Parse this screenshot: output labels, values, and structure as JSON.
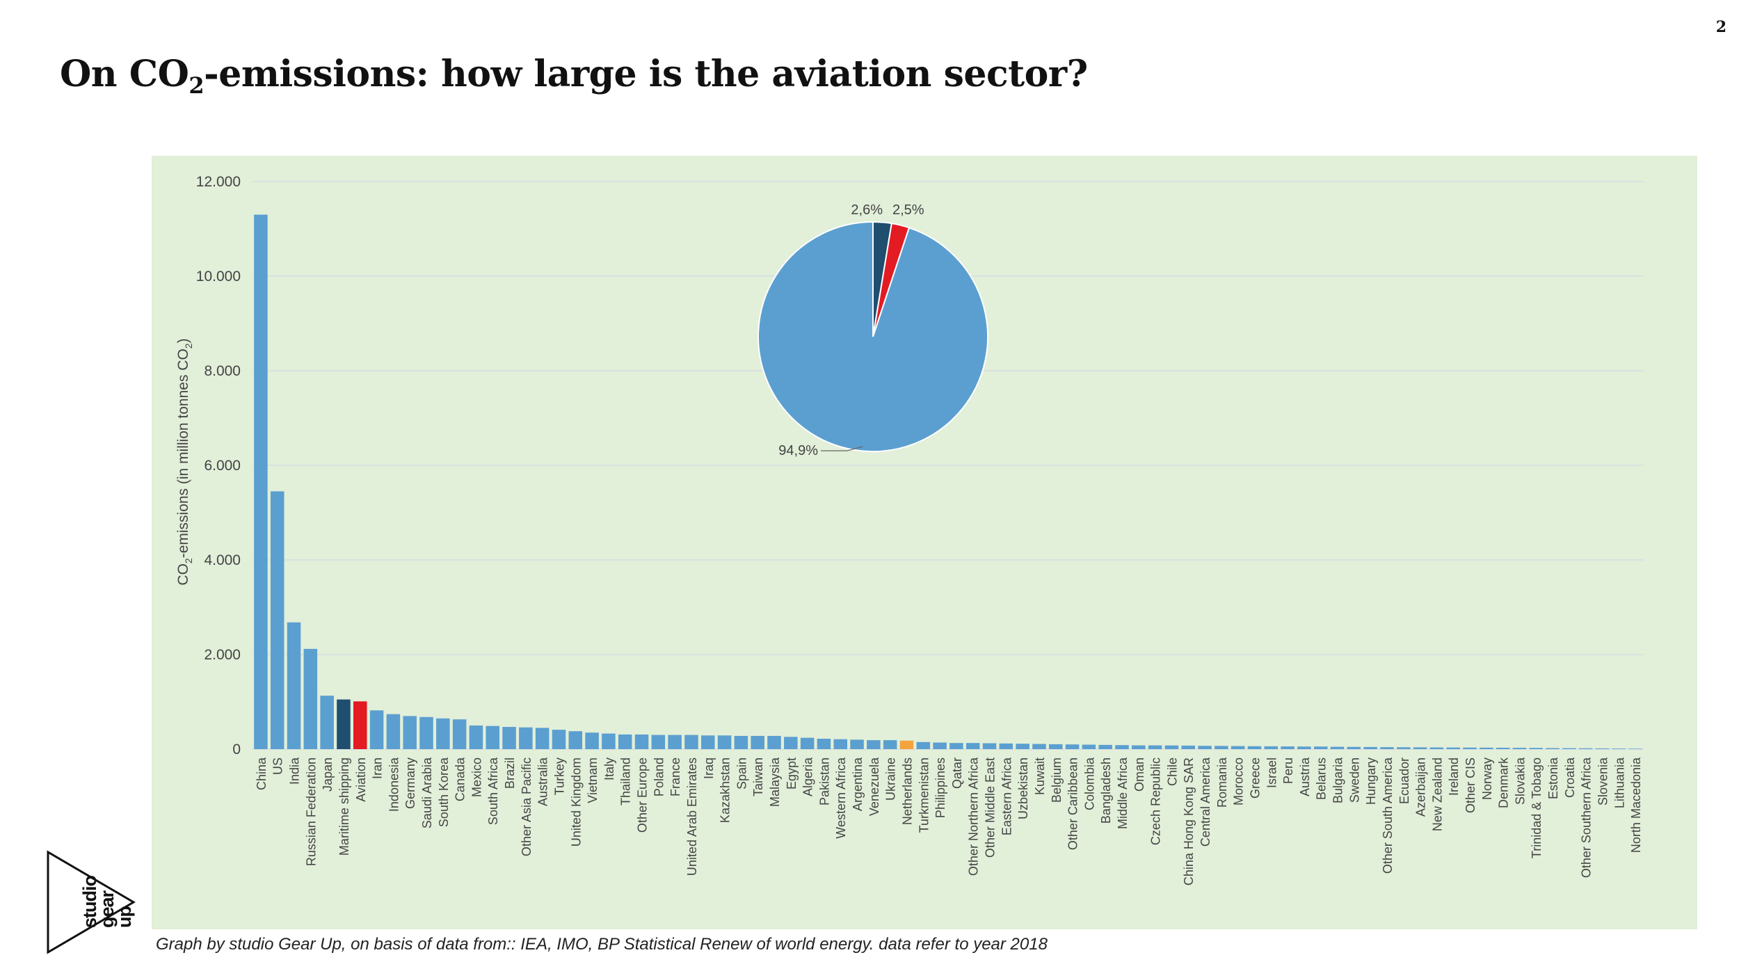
{
  "slide_number": "2",
  "title": {
    "prefix": "On CO",
    "subscript": "2",
    "suffix": "-emissions: how large is the aviation sector?"
  },
  "caption": "Graph by studio Gear Up, on basis of data from:: IEA, IMO, BP Statistical Renew of world energy. data refer to year 2018",
  "logo": {
    "lines": [
      "studio",
      "gear",
      "up"
    ]
  },
  "colors": {
    "panel_bg": "#e2efd9",
    "bar_default": "#5b9fd0",
    "maritime_shipping": "#1f4e6e",
    "aviation": "#e31b23",
    "netherlands": "#f5a33c",
    "grid": "#d6dde3",
    "axis_text": "#444444"
  },
  "chart_data": [
    {
      "type": "bar",
      "ylabel_prefix": "CO",
      "ylabel_sub": "2",
      "ylabel_middle": "-emissions (in million tonnes CO",
      "ylabel_end": ")",
      "ylim": [
        0,
        12000
      ],
      "yticks": [
        "0",
        "2.000",
        "4.000",
        "6.000",
        "8.000",
        "10.000",
        "12.000"
      ],
      "ytick_values": [
        0,
        2000,
        4000,
        6000,
        8000,
        10000,
        12000
      ],
      "grid": true,
      "categories": [
        "China",
        "US",
        "India",
        "Russian Federation",
        "Japan",
        "Maritime shipping",
        "Aviation",
        "Iran",
        "Indonesia",
        "Germany",
        "Saudi Arabia",
        "South Korea",
        "Canada",
        "Mexico",
        "South Africa",
        "Brazil",
        "Other Asia Pacific",
        "Australia",
        "Turkey",
        "United Kingdom",
        "Vietnam",
        "Italy",
        "Thailand",
        "Other Europe",
        "Poland",
        "France",
        "United Arab Emirates",
        "Iraq",
        "Kazakhstan",
        "Spain",
        "Taiwan",
        "Malaysia",
        "Egypt",
        "Algeria",
        "Pakistan",
        "Western Africa",
        "Argentina",
        "Venezuela",
        "Ukraine",
        "Netherlands",
        "Turkmenistan",
        "Philippines",
        "Qatar",
        "Other Northern Africa",
        "Other Middle East",
        "Eastern Africa",
        "Uzbekistan",
        "Kuwait",
        "Belgium",
        "Other Caribbean",
        "Colombia",
        "Bangladesh",
        "Middle Africa",
        "Oman",
        "Czech Republic",
        "Chile",
        "China Hong Kong SAR",
        "Central America",
        "Romania",
        "Morocco",
        "Greece",
        "Israel",
        "Peru",
        "Austria",
        "Belarus",
        "Bulgaria",
        "Sweden",
        "Hungary",
        "Other South America",
        "Ecuador",
        "Azerbaijan",
        "New Zealand",
        "Ireland",
        "Other CIS",
        "Norway",
        "Denmark",
        "Slovakia",
        "Trinidad & Tobago",
        "Estonia",
        "Croatia",
        "Other Southern Africa",
        "Slovenia",
        "Lithuania",
        "North Macedonia"
      ],
      "values": [
        11300,
        5450,
        2680,
        2120,
        1130,
        1050,
        1010,
        820,
        740,
        700,
        680,
        650,
        630,
        500,
        490,
        470,
        460,
        450,
        410,
        380,
        350,
        330,
        310,
        310,
        300,
        300,
        300,
        290,
        290,
        280,
        280,
        280,
        260,
        240,
        220,
        210,
        200,
        190,
        190,
        180,
        150,
        140,
        130,
        130,
        125,
        120,
        115,
        110,
        105,
        100,
        95,
        90,
        85,
        80,
        80,
        78,
        75,
        70,
        68,
        65,
        62,
        60,
        58,
        55,
        55,
        50,
        48,
        45,
        42,
        40,
        38,
        36,
        35,
        33,
        32,
        30,
        28,
        26,
        22,
        20,
        18,
        15,
        12,
        10
      ],
      "highlights": {
        "Maritime shipping": "#1f4e6e",
        "Aviation": "#e31b23",
        "Netherlands": "#f5a33c"
      }
    },
    {
      "type": "pie",
      "slices": [
        {
          "label": "2,6%",
          "value": 2.6,
          "color": "#1f4e6e"
        },
        {
          "label": "2,5%",
          "value": 2.5,
          "color": "#e31b23"
        },
        {
          "label": "94,9%",
          "value": 94.9,
          "color": "#5b9fd0"
        }
      ]
    }
  ]
}
